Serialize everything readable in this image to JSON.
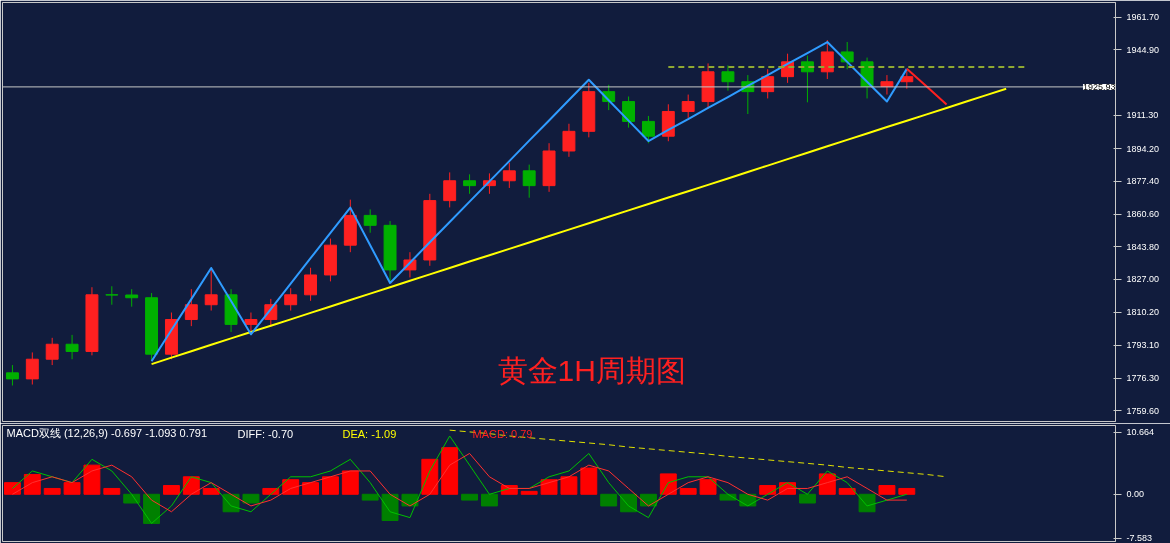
{
  "chart_data": [
    {
      "type": "candlestick",
      "categories": [
        null,
        null,
        null,
        null,
        null,
        null,
        null,
        null,
        null,
        null,
        null,
        null,
        null,
        null,
        null,
        null,
        null,
        null,
        null,
        null,
        null,
        null,
        null,
        null,
        null,
        null,
        null,
        null,
        null,
        null,
        null,
        null,
        null,
        null,
        null,
        null,
        null,
        null,
        null,
        null,
        null,
        null,
        null,
        null,
        null,
        null,
        null,
        null,
        null,
        null,
        null,
        null,
        null,
        null,
        null,
        null
      ],
      "ohlc": [
        [
          1779.0,
          1783.0,
          1772.5,
          1775.9
        ],
        [
          1775.9,
          1789.5,
          1773.0,
          1786.0
        ],
        [
          1786.0,
          1797.0,
          1783.0,
          1793.7
        ],
        [
          1793.7,
          1798.5,
          1786.0,
          1790.0
        ],
        [
          1790.0,
          1823.0,
          1788.0,
          1819.1
        ],
        [
          1819.1,
          1823.5,
          1814.0,
          1819.0
        ],
        [
          1819.0,
          1822.0,
          1813.0,
          1817.6
        ],
        [
          1817.6,
          1820.0,
          1785.0,
          1788.6
        ],
        [
          1788.6,
          1810.0,
          1786.0,
          1806.4
        ],
        [
          1806.4,
          1822.0,
          1803.0,
          1814.0
        ],
        [
          1814.0,
          1832.0,
          1811.0,
          1819.1
        ],
        [
          1819.1,
          1822.0,
          1800.0,
          1803.9
        ],
        [
          1803.9,
          1810.0,
          1800.5,
          1806.4
        ],
        [
          1806.4,
          1817.0,
          1803.0,
          1814.0
        ],
        [
          1814.0,
          1822.5,
          1811.0,
          1819.1
        ],
        [
          1819.1,
          1833.0,
          1816.0,
          1829.3
        ],
        [
          1829.3,
          1848.0,
          1826.0,
          1844.6
        ],
        [
          1844.6,
          1868.0,
          1841.0,
          1859.9
        ],
        [
          1859.9,
          1863.0,
          1851.0,
          1854.8
        ],
        [
          1854.8,
          1857.0,
          1826.0,
          1831.9
        ],
        [
          1831.9,
          1841.0,
          1828.0,
          1837.0
        ],
        [
          1837.0,
          1871.0,
          1834.0,
          1867.5
        ],
        [
          1867.5,
          1882.0,
          1864.0,
          1877.7
        ],
        [
          1877.7,
          1881.0,
          1871.0,
          1875.2
        ],
        [
          1875.2,
          1881.5,
          1871.0,
          1877.7
        ],
        [
          1877.7,
          1887.0,
          1874.0,
          1882.8
        ],
        [
          1882.8,
          1886.0,
          1869.0,
          1875.2
        ],
        [
          1875.2,
          1897.0,
          1872.0,
          1893.0
        ],
        [
          1893.0,
          1907.0,
          1890.0,
          1903.1
        ],
        [
          1903.1,
          1928.0,
          1900.0,
          1923.5
        ],
        [
          1923.5,
          1927.0,
          1914.0,
          1918.4
        ],
        [
          1918.4,
          1921.0,
          1905.0,
          1908.2
        ],
        [
          1908.2,
          1911.0,
          1897.0,
          1900.6
        ],
        [
          1900.6,
          1917.0,
          1898.0,
          1913.3
        ],
        [
          1913.3,
          1922.0,
          1910.0,
          1918.4
        ],
        [
          1918.4,
          1938.0,
          1915.0,
          1933.7
        ],
        [
          1933.7,
          1937.0,
          1924.0,
          1928.6
        ],
        [
          1928.6,
          1932.0,
          1912.0,
          1923.5
        ],
        [
          1923.5,
          1935.0,
          1920.0,
          1931.2
        ],
        [
          1931.2,
          1943.0,
          1928.0,
          1938.8
        ],
        [
          1938.8,
          1942.0,
          1918.0,
          1933.7
        ],
        [
          1933.7,
          1950.0,
          1930.0,
          1943.9
        ],
        [
          1943.9,
          1949.0,
          1935.0,
          1938.8
        ],
        [
          1938.8,
          1941.0,
          1920.0,
          1926.1
        ],
        [
          1926.1,
          1932.0,
          1922.0,
          1928.6
        ],
        [
          1928.6,
          1935.0,
          1925.0,
          1931.2
        ],
        null,
        null,
        null,
        null,
        null,
        null,
        null,
        null,
        null,
        null
      ],
      "series": [
        {
          "type": "line",
          "color": "#ffff00",
          "values": [
            null,
            null,
            null,
            null,
            null,
            null,
            null,
            1783.5,
            1786.8,
            1790.1,
            1793.4,
            1796.7,
            1800.0,
            1803.2,
            1806.5,
            1809.8,
            1813.1,
            1816.4,
            1819.7,
            1823.0,
            1826.3,
            1829.6,
            1832.9,
            1836.2,
            1839.4,
            1842.7,
            1846.0,
            1849.3,
            1852.6,
            1855.9,
            1859.2,
            1862.5,
            1865.8,
            1869.1,
            1872.3,
            1875.6,
            1878.9,
            1882.2,
            1885.5,
            1888.8,
            1892.1,
            1895.4,
            1898.7,
            1902.0,
            1905.3,
            1908.5,
            1911.8,
            1915.1,
            1918.4,
            1921.7,
            1925.0,
            null,
            null,
            null,
            null,
            null
          ]
        },
        {
          "type": "line",
          "color": "#2f9bff",
          "values": [
            null,
            null,
            null,
            null,
            null,
            null,
            null,
            1785.0,
            1801.0,
            1816.9,
            1832.9,
            1815.9,
            1798.8,
            1811.8,
            1824.8,
            1837.9,
            1850.9,
            1863.9,
            1844.6,
            1825.2,
            1835.6,
            1846.1,
            1856.5,
            1867.0,
            1877.4,
            1887.8,
            1898.3,
            1908.7,
            1919.2,
            1929.6,
            1919.1,
            1908.6,
            1898.1,
            1903.8,
            1909.4,
            1915.1,
            1920.7,
            1926.4,
            1932.0,
            1937.7,
            1943.3,
            1949.0,
            1938.8,
            1928.6,
            1918.4,
            1935.2,
            null,
            null,
            null,
            null,
            null,
            null,
            null,
            null,
            null,
            null
          ]
        },
        {
          "type": "line",
          "color": "#ff2020",
          "values": [
            null,
            null,
            null,
            null,
            null,
            null,
            null,
            null,
            null,
            null,
            null,
            null,
            null,
            null,
            null,
            null,
            null,
            null,
            null,
            null,
            null,
            null,
            null,
            null,
            null,
            null,
            null,
            null,
            null,
            null,
            null,
            null,
            null,
            null,
            null,
            null,
            null,
            null,
            null,
            null,
            null,
            null,
            null,
            null,
            null,
            1935.2,
            1926.1,
            1916.9,
            null,
            null,
            null,
            null,
            null,
            null,
            null,
            null
          ]
        },
        {
          "type": "line",
          "color": "#8fa832",
          "line_style": "dashed",
          "values": [
            null,
            null,
            null,
            null,
            null,
            null,
            null,
            null,
            null,
            null,
            null,
            null,
            null,
            null,
            null,
            null,
            null,
            null,
            null,
            null,
            null,
            null,
            null,
            null,
            null,
            null,
            null,
            null,
            null,
            null,
            null,
            null,
            null,
            1936.2,
            1936.2,
            1936.2,
            1936.2,
            1936.2,
            1936.2,
            1936.2,
            1936.2,
            1936.2,
            1936.2,
            1936.2,
            1936.2,
            1936.2,
            1936.2,
            1936.2,
            1936.2,
            1936.2,
            1936.2,
            1936.2,
            null,
            null,
            null,
            null
          ]
        }
      ],
      "ref_lines": [
        {
          "axis": "y",
          "value": 1925.93,
          "label": "1925.93",
          "color": "#c8c8c8"
        }
      ],
      "annotations": [
        "黄金1H周期图"
      ],
      "ylim": [
        1754.0,
        1969.3
      ],
      "yticks": [
        {
          "value": 1961.7,
          "label": "1961.70"
        },
        {
          "value": 1944.9,
          "label": "1944.90"
        },
        {
          "value": 1911.3,
          "label": "1911.30"
        },
        {
          "value": 1894.2,
          "label": "1894.20"
        },
        {
          "value": 1877.4,
          "label": "1877.40"
        },
        {
          "value": 1860.6,
          "label": "1860.60"
        },
        {
          "value": 1843.8,
          "label": "1843.80"
        },
        {
          "value": 1827.0,
          "label": "1827.00"
        },
        {
          "value": 1810.2,
          "label": "1810.20"
        },
        {
          "value": 1793.1,
          "label": "1793.10"
        },
        {
          "value": 1776.3,
          "label": "1776.30"
        },
        {
          "value": 1759.6,
          "label": "1759.60"
        }
      ],
      "tick_labels": "y",
      "grid": false
    },
    {
      "type": "bar",
      "categories": [
        null,
        null,
        null,
        null,
        null,
        null,
        null,
        null,
        null,
        null,
        null,
        null,
        null,
        null,
        null,
        null,
        null,
        null,
        null,
        null,
        null,
        null,
        null,
        null,
        null,
        null,
        null,
        null,
        null,
        null,
        null,
        null,
        null,
        null,
        null,
        null,
        null,
        null,
        null,
        null,
        null,
        null,
        null,
        null,
        null,
        null,
        null,
        null,
        null,
        null,
        null,
        null,
        null,
        null,
        null,
        null
      ],
      "values": [
        2,
        3.4,
        1,
        2,
        5,
        1,
        -1.5,
        -5,
        1.5,
        3,
        1,
        -3,
        -1.5,
        1,
        2.5,
        2,
        3,
        4,
        -1,
        -4.5,
        -2,
        6,
        8,
        -1,
        -2,
        1.5,
        0.5,
        2.5,
        3,
        4.5,
        -2,
        -3,
        -2,
        3.5,
        1,
        2.5,
        -1,
        -2,
        1.5,
        2,
        -1.5,
        3.5,
        1,
        -3,
        1.5,
        1,
        null,
        null,
        null,
        null,
        null,
        null,
        null,
        null,
        null,
        null
      ],
      "colors": [
        "#ff0000",
        "#ff0000",
        "#ff0000",
        "#ff0000",
        "#ff0000",
        "#ff0000",
        "#008000",
        "#008000",
        "#ff0000",
        "#ff0000",
        "#ff0000",
        "#008000",
        "#008000",
        "#ff0000",
        "#ff0000",
        "#ff0000",
        "#ff0000",
        "#ff0000",
        "#008000",
        "#008000",
        "#008000",
        "#ff0000",
        "#ff0000",
        "#008000",
        "#008000",
        "#ff0000",
        "#ff0000",
        "#ff0000",
        "#ff0000",
        "#ff0000",
        "#008000",
        "#008000",
        "#008000",
        "#ff0000",
        "#ff0000",
        "#ff0000",
        "#008000",
        "#008000",
        "#ff0000",
        "#ff0000",
        "#008000",
        "#ff0000",
        "#ff0000",
        "#008000",
        "#ff0000",
        "#ff0000",
        null,
        null,
        null,
        null,
        null,
        null,
        null,
        null,
        null,
        null
      ],
      "series": [
        {
          "type": "line",
          "color": "#00c000",
          "values": [
            1,
            4,
            3,
            2,
            6,
            4,
            0,
            -5,
            -2,
            3,
            2,
            -2,
            -3,
            0,
            3,
            3,
            4,
            6,
            2,
            -3,
            -4,
            4,
            10,
            5,
            0,
            1,
            1,
            3,
            4,
            7,
            2,
            -2,
            -4,
            2,
            3,
            3,
            0,
            -2,
            0,
            2,
            0,
            4,
            2,
            -2,
            -1,
            0,
            null,
            null,
            null,
            null,
            null,
            null,
            null,
            null,
            null,
            null
          ]
        },
        {
          "type": "line",
          "color": "#ff3030",
          "values": [
            0,
            2,
            3,
            2,
            4,
            5,
            3,
            -1,
            -3,
            0,
            2,
            0,
            -2,
            -1,
            1,
            2,
            3,
            4,
            4,
            0,
            -2,
            0,
            5,
            7,
            3,
            1,
            1,
            2,
            3,
            5,
            4,
            1,
            -2,
            0,
            2,
            3,
            2,
            0,
            -1,
            1,
            1,
            2,
            3,
            1,
            -1,
            -1,
            null,
            null,
            null,
            null,
            null,
            null,
            null,
            null,
            null,
            null
          ]
        },
        {
          "type": "line",
          "color": "#e0e000",
          "line_style": "dashed",
          "values": [
            null,
            null,
            null,
            null,
            null,
            null,
            null,
            null,
            null,
            null,
            null,
            null,
            null,
            null,
            null,
            null,
            null,
            null,
            null,
            null,
            null,
            null,
            11.0,
            10.7,
            10.4,
            10.0,
            9.7,
            9.4,
            9.1,
            8.8,
            8.5,
            8.1,
            7.8,
            7.5,
            7.2,
            6.9,
            6.5,
            6.2,
            5.9,
            5.6,
            5.3,
            5.0,
            4.6,
            4.3,
            4.0,
            3.7,
            3.4,
            3.0,
            null,
            null,
            null,
            null,
            null,
            null,
            null,
            null
          ]
        }
      ],
      "annotations": [
        "MACD双线 (12,26,9) -0.697 -1.093 0.791",
        "DIFF: -0.70",
        "DEA: -1.09",
        "MACD: 0.79"
      ],
      "ylim": [
        -8.1,
        11.8
      ],
      "yticks": [
        {
          "value": 10.664,
          "label": "10.664"
        },
        {
          "value": 0,
          "label": "0.00"
        },
        {
          "value": -7.583,
          "label": "-7.583"
        }
      ],
      "tick_labels": "y",
      "grid": false
    }
  ]
}
